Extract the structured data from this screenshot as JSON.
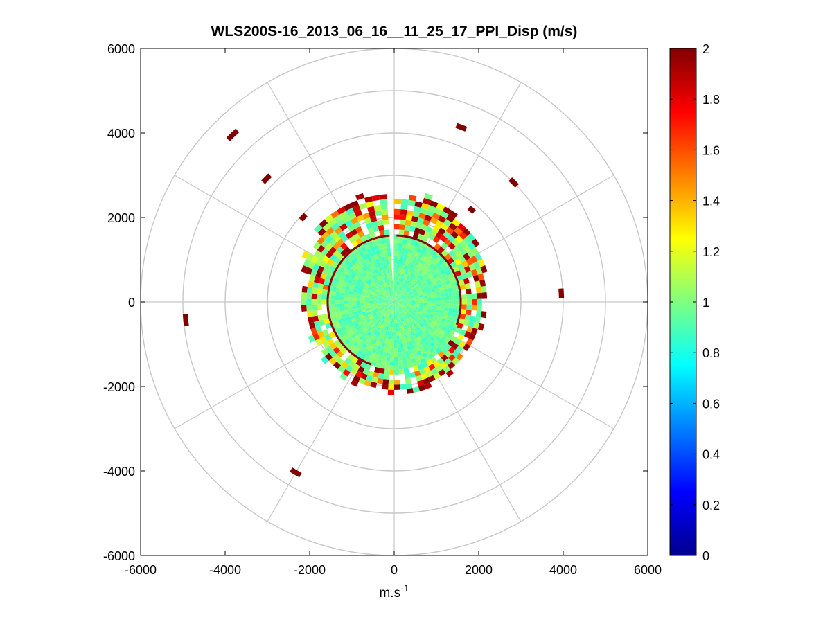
{
  "chart_data": {
    "type": "heatmap",
    "subtype": "polar-ppi",
    "title": "WLS200S-16_2013_06_16__11_25_17_PPI_Disp (m/s)",
    "xlabel_base": "m.s",
    "xlabel_sup": "-1",
    "ylabel": "",
    "xlim": [
      -6000,
      6000
    ],
    "ylim": [
      -6000,
      6000
    ],
    "x_ticks": [
      -6000,
      -4000,
      -2000,
      0,
      2000,
      4000,
      6000
    ],
    "y_ticks": [
      -6000,
      -4000,
      -2000,
      0,
      2000,
      4000,
      6000
    ],
    "x_tick_labels": [
      "-6000",
      "-4000",
      "-2000",
      "0",
      "2000",
      "4000",
      "6000"
    ],
    "y_tick_labels": [
      "-6000",
      "-4000",
      "-2000",
      "0",
      "2000",
      "4000",
      "6000"
    ],
    "polar_grid": {
      "range_rings": [
        1000,
        2000,
        3000,
        4000,
        5000,
        6000
      ],
      "spoke_angles_deg": [
        0,
        30,
        60,
        90,
        120,
        150,
        180,
        210,
        240,
        270,
        300,
        330
      ]
    },
    "data_summary": {
      "dense_core_radius_m": 1600,
      "outer_band_radius_m": [
        1600,
        2600
      ],
      "missing_sector_deg": [
        -5,
        0
      ],
      "typical_value": 0.95
    },
    "sparse_returns": [
      {
        "range_m": 5500,
        "azimuth_deg": -44,
        "value": 2.0
      },
      {
        "range_m": 4200,
        "azimuth_deg": -46,
        "value": 2.0
      },
      {
        "range_m": 4430,
        "azimuth_deg": 21,
        "value": 2.0
      },
      {
        "range_m": 4000,
        "azimuth_deg": 45,
        "value": 2.0
      },
      {
        "range_m": 3960,
        "azimuth_deg": 87,
        "value": 2.0
      },
      {
        "range_m": 4950,
        "azimuth_deg": -95,
        "value": 2.0
      },
      {
        "range_m": 4660,
        "azimuth_deg": -150,
        "value": 2.0
      },
      {
        "range_m": 2940,
        "azimuth_deg": -47,
        "value": 2.0
      },
      {
        "range_m": 2850,
        "azimuth_deg": 40,
        "value": 2.0
      }
    ],
    "colorbar": {
      "colormap": "jet",
      "clim": [
        0,
        2
      ],
      "ticks": [
        0,
        0.2,
        0.4,
        0.6,
        0.8,
        1,
        1.2,
        1.4,
        1.6,
        1.8,
        2
      ],
      "tick_labels": [
        "0",
        "0.2",
        "0.4",
        "0.6",
        "0.8",
        "1",
        "1.2",
        "1.4",
        "1.6",
        "1.8",
        "2"
      ]
    },
    "grid": true,
    "legend": "none"
  },
  "colors": {
    "grid": "#c8c8c8",
    "axes": "#000000",
    "background": "#ffffff"
  }
}
